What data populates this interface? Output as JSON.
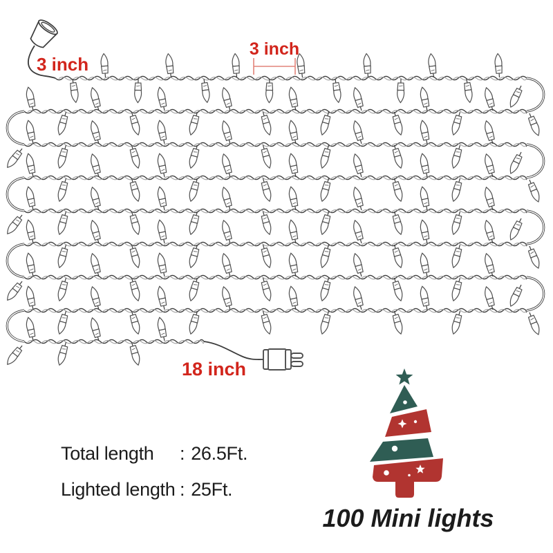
{
  "colors": {
    "label_red": "#d2251c",
    "bracket_red": "#e2837a",
    "wire": "#3b3b3b",
    "wire_light": "#a0a0a0",
    "bulb_outline": "#4f4f4f",
    "tree_green": "#2f5d54",
    "tree_red": "#b13430",
    "text_black": "#1c1c1c"
  },
  "labels": {
    "lead_in_length": "3 inch",
    "bulb_spacing": "3 inch",
    "lead_out_length": "18 inch"
  },
  "specs": [
    {
      "label": "Total length",
      "value": "26.5Ft."
    },
    {
      "label": "Lighted length",
      "value": "25Ft."
    }
  ],
  "spec_separator": ":",
  "caption": "100 Mini lights"
}
